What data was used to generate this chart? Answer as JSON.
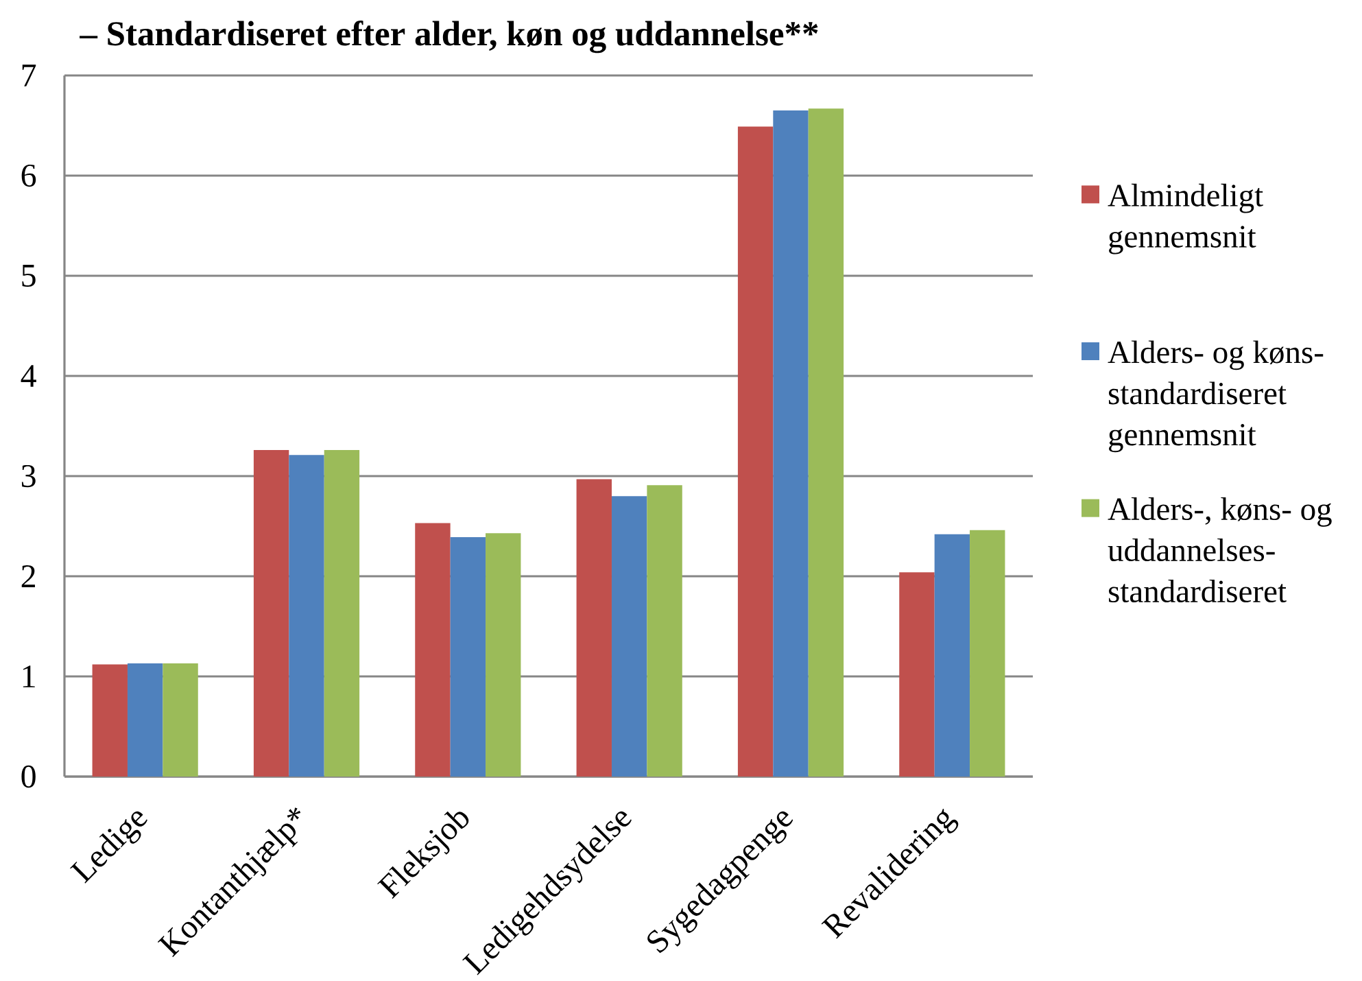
{
  "chart_data": {
    "type": "bar",
    "title": "– Standardiseret efter alder, køn og uddannelse**",
    "categories": [
      "Ledige",
      "Kontanthjælp*",
      "Fleksjob",
      "Ledigehdsydelse",
      "Sygedagpenge",
      "Revalidering"
    ],
    "series": [
      {
        "name": "Almindeligt gennemsnit",
        "color": "#c0504d",
        "values": [
          1.12,
          3.26,
          2.53,
          2.97,
          6.49,
          2.04
        ]
      },
      {
        "name": "Alders- og køns-standardiseret gennemsnit",
        "color": "#4f81bd",
        "values": [
          1.13,
          3.21,
          2.39,
          2.8,
          6.65,
          2.42
        ]
      },
      {
        "name": "Alders-, køns- og uddannelses-standardiseret",
        "color": "#9bbb59",
        "values": [
          1.13,
          3.26,
          2.43,
          2.91,
          6.67,
          2.46
        ]
      }
    ],
    "ylim": [
      0,
      7
    ],
    "yticks": [
      0,
      1,
      2,
      3,
      4,
      5,
      6,
      7
    ],
    "grid": "y",
    "legend": "right"
  }
}
